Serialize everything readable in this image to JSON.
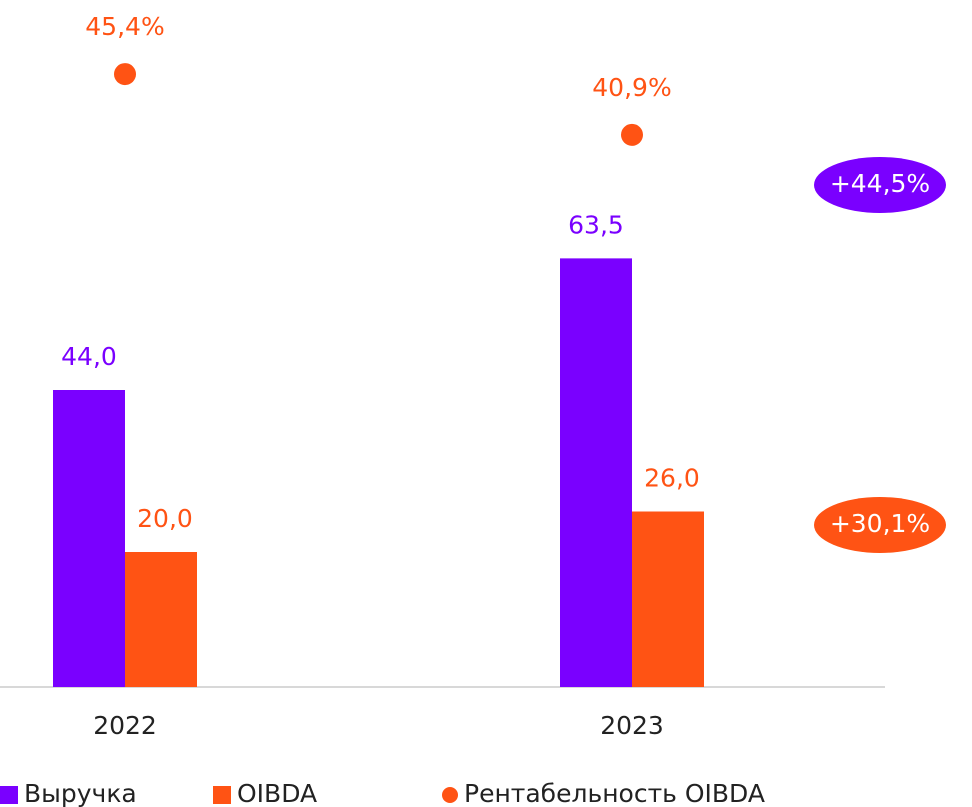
{
  "chart_data": {
    "type": "bar",
    "categories": [
      "2022",
      "2023"
    ],
    "series": [
      {
        "name": "Выручка",
        "color": "#7a00ff",
        "values": [
          44.0,
          63.5
        ],
        "value_labels": [
          "44,0",
          "63,5"
        ]
      },
      {
        "name": "OIBDA",
        "color": "#ff5314",
        "values": [
          20.0,
          26.0
        ],
        "value_labels": [
          "20,0",
          "26,0"
        ]
      },
      {
        "name": "Рентабельность OIBDA",
        "color": "#ff5314",
        "type": "scatter",
        "axis": "y2",
        "values": [
          45.4,
          40.9
        ],
        "value_labels": [
          "45,4%",
          "40,9%"
        ]
      }
    ],
    "ylim": [
      0,
      100
    ],
    "y2lim": [
      0,
      50
    ],
    "annotations": [
      {
        "text": "+44,5%",
        "color": "#7a00ff"
      },
      {
        "text": "+30,1%",
        "color": "#ff5314"
      }
    ],
    "legend": "bottom"
  }
}
